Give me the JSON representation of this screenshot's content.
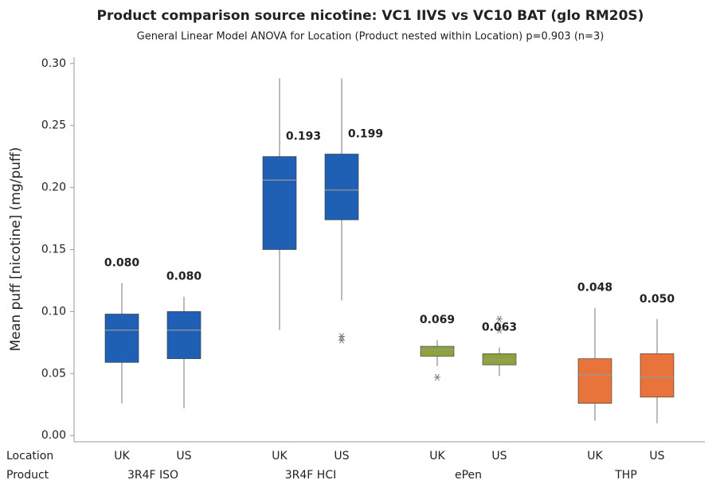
{
  "chart_data": {
    "type": "box",
    "title": "Product comparison source nicotine: VC1 IIVS vs VC10 BAT (glo RM20S)",
    "subtitle": "General Linear Model ANOVA for Location (Product nested within Location) p=0.903 (n=3)",
    "ylabel": "Mean puff [nicotine] (mg/puff)",
    "x_row_labels": [
      "Location",
      "Product"
    ],
    "ylim": [
      -0.005,
      0.305
    ],
    "yticks": [
      {
        "value": 0,
        "label": "0.00"
      },
      {
        "value": 0.05,
        "label": "0.05"
      },
      {
        "value": 0.1,
        "label": "0.10"
      },
      {
        "value": 0.15,
        "label": "0.15"
      },
      {
        "value": 0.2,
        "label": "0.20"
      },
      {
        "value": 0.25,
        "label": "0.25"
      },
      {
        "value": 0.3,
        "label": "0.30"
      }
    ],
    "products": [
      {
        "name": "3R4F ISO",
        "color": "#1f5fb4",
        "boxes": [
          {
            "location": "UK",
            "min": 0.026,
            "q1": 0.059,
            "median": 0.085,
            "q3": 0.098,
            "max": 0.123,
            "outliers": [],
            "mean": 0.08,
            "mean_label": "0.080"
          },
          {
            "location": "US",
            "min": 0.022,
            "q1": 0.062,
            "median": 0.085,
            "q3": 0.1,
            "max": 0.112,
            "outliers": [],
            "mean": 0.08,
            "mean_label": "0.080"
          }
        ]
      },
      {
        "name": "3R4F HCI",
        "color": "#1f5fb4",
        "boxes": [
          {
            "location": "UK",
            "min": 0.085,
            "q1": 0.15,
            "median": 0.206,
            "q3": 0.225,
            "max": 0.288,
            "outliers": [],
            "mean": 0.193,
            "mean_label": "0.193"
          },
          {
            "location": "US",
            "min": 0.109,
            "q1": 0.174,
            "median": 0.198,
            "q3": 0.227,
            "max": 0.288,
            "outliers": [
              0.08,
              0.077
            ],
            "mean": 0.199,
            "mean_label": "0.199"
          }
        ]
      },
      {
        "name": "ePen",
        "color": "#8ca23a",
        "boxes": [
          {
            "location": "UK",
            "min": 0.056,
            "q1": 0.064,
            "median": 0.069,
            "q3": 0.072,
            "max": 0.077,
            "outliers": [
              0.047
            ],
            "mean": 0.069,
            "mean_label": "0.069"
          },
          {
            "location": "US",
            "min": 0.048,
            "q1": 0.057,
            "median": 0.061,
            "q3": 0.066,
            "max": 0.071,
            "outliers": [
              0.094,
              0.085
            ],
            "mean": 0.063,
            "mean_label": "0.063"
          }
        ]
      },
      {
        "name": "THP",
        "color": "#e8743b",
        "boxes": [
          {
            "location": "UK",
            "min": 0.012,
            "q1": 0.026,
            "median": 0.049,
            "q3": 0.062,
            "max": 0.103,
            "outliers": [],
            "mean": 0.048,
            "mean_label": "0.048"
          },
          {
            "location": "US",
            "min": 0.01,
            "q1": 0.031,
            "median": 0.047,
            "q3": 0.066,
            "max": 0.094,
            "outliers": [],
            "mean": 0.05,
            "mean_label": "0.050"
          }
        ]
      }
    ]
  }
}
